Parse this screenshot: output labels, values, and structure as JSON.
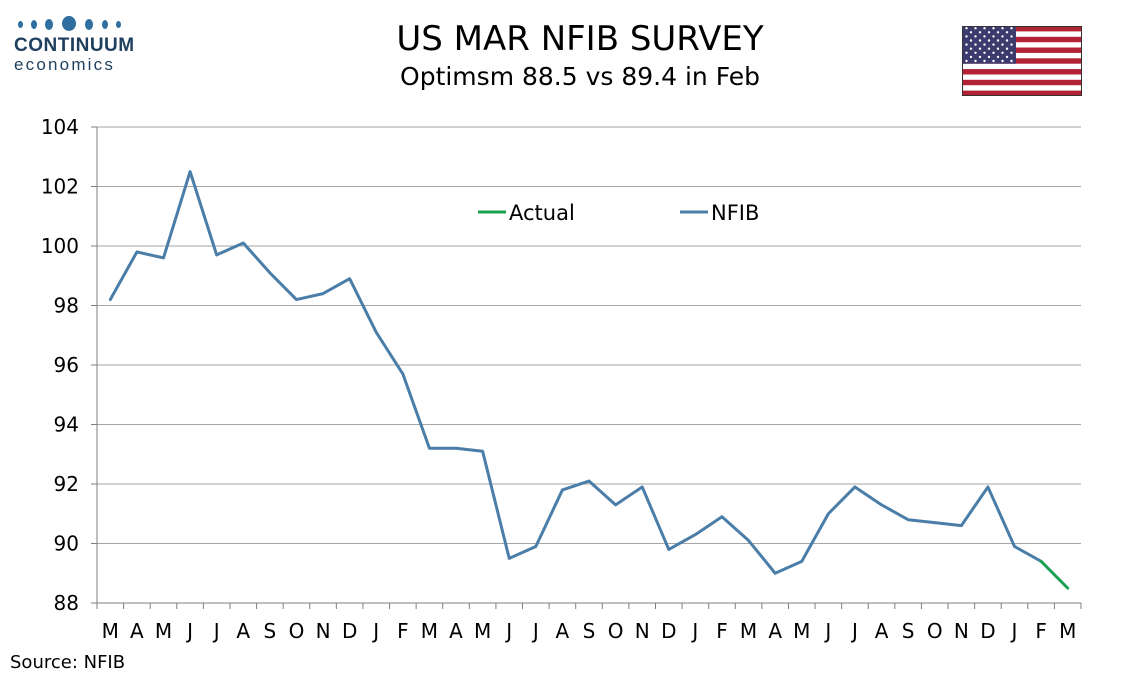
{
  "logo": {
    "name": "CONTINUUM",
    "sub": "economics",
    "dot_color": "#2f6f9f"
  },
  "chart_data": {
    "type": "line",
    "title": "US MAR NFIB SURVEY",
    "subtitle": "Optimsm 88.5 vs 89.4 in Feb",
    "categories": [
      "M",
      "A",
      "M",
      "J",
      "J",
      "A",
      "S",
      "O",
      "N",
      "D",
      "J",
      "F",
      "M",
      "A",
      "M",
      "J",
      "J",
      "A",
      "S",
      "O",
      "N",
      "D",
      "J",
      "F",
      "M",
      "A",
      "M",
      "J",
      "J",
      "A",
      "S",
      "O",
      "N",
      "D",
      "J",
      "F",
      "M"
    ],
    "series": [
      {
        "name": "NFIB",
        "color": "#4a7ea8",
        "values": [
          98.2,
          99.8,
          99.6,
          102.5,
          99.7,
          100.1,
          99.1,
          98.2,
          98.4,
          98.9,
          97.1,
          95.7,
          93.2,
          93.2,
          93.1,
          89.5,
          89.9,
          91.8,
          92.1,
          91.3,
          91.9,
          89.8,
          90.3,
          90.9,
          90.1,
          89.0,
          89.4,
          91.0,
          91.9,
          91.3,
          90.8,
          90.7,
          90.6,
          91.9,
          89.9,
          89.4,
          null
        ]
      },
      {
        "name": "Actual",
        "color": "#1aa052",
        "values": [
          null,
          null,
          null,
          null,
          null,
          null,
          null,
          null,
          null,
          null,
          null,
          null,
          null,
          null,
          null,
          null,
          null,
          null,
          null,
          null,
          null,
          null,
          null,
          null,
          null,
          null,
          null,
          null,
          null,
          null,
          null,
          null,
          null,
          null,
          null,
          89.4,
          88.5
        ]
      }
    ],
    "ylim": [
      88,
      104
    ],
    "yticks": [
      "88",
      "90",
      "92",
      "94",
      "96",
      "98",
      "100",
      "102",
      "104"
    ],
    "grid": true,
    "legend_position": "top-center",
    "xlabel": "",
    "ylabel": ""
  },
  "source": "Source: NFIB"
}
